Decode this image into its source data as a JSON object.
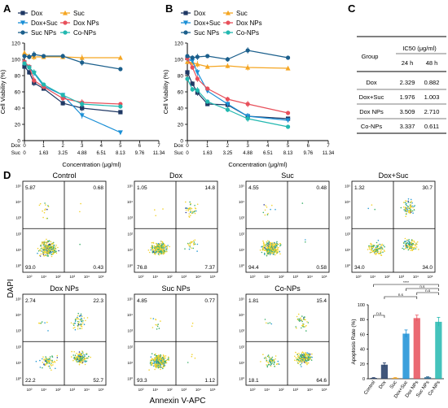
{
  "panels": {
    "A": "A",
    "B": "B",
    "C": "C",
    "D": "D"
  },
  "colors": {
    "dox": "#1f3864",
    "suc": "#f5a623",
    "doxsuc": "#1a8fd6",
    "doxnp": "#e8505b",
    "sucnp": "#1b5f8c",
    "conp": "#23b8b0"
  },
  "chart_data": [
    {
      "type": "line",
      "panel": "A",
      "ylabel": "Cell Viability (%)",
      "xlabel": "Concentration (μg/ml)",
      "ylim": [
        0,
        120
      ],
      "yticks": [
        0,
        20,
        40,
        60,
        80,
        100,
        120
      ],
      "x_label_rows": [
        {
          "name": "Dox",
          "ticks": [
            "0",
            "1",
            "2",
            "3",
            "4",
            "5",
            "6",
            "7"
          ]
        },
        {
          "name": "Suc",
          "ticks": [
            "0",
            "1.63",
            "3.25",
            "4.88",
            "6.51",
            "8.13",
            "9.76",
            "11.34"
          ]
        }
      ],
      "xlim": [
        0,
        7
      ],
      "series": [
        {
          "name": "Dox",
          "key": "dox",
          "marker": "square",
          "x": [
            0,
            0.25,
            0.5,
            1,
            2,
            3,
            5
          ],
          "y": [
            91,
            84,
            71,
            64,
            46,
            40,
            35
          ]
        },
        {
          "name": "Suc",
          "key": "suc",
          "marker": "triangle-up",
          "x": [
            0,
            0.25,
            0.5,
            1,
            2,
            3,
            5
          ],
          "y": [
            108,
            104,
            103,
            103,
            103,
            102,
            102
          ]
        },
        {
          "name": "Dox+Suc",
          "key": "doxsuc",
          "marker": "triangle-down",
          "x": [
            0,
            0.25,
            0.5,
            1,
            2,
            3,
            5
          ],
          "y": [
            96,
            90,
            83,
            67,
            56,
            31,
            10
          ]
        },
        {
          "name": "Dox NPs",
          "key": "doxnp",
          "marker": "circle",
          "x": [
            0,
            0.25,
            0.5,
            1,
            2,
            3,
            5
          ],
          "y": [
            97,
            91,
            74,
            66,
            52,
            47,
            45
          ]
        },
        {
          "name": "Suc NPs",
          "key": "sucnp",
          "marker": "circle",
          "x": [
            0,
            0.25,
            0.5,
            1,
            2,
            3,
            5
          ],
          "y": [
            104,
            103,
            106,
            104,
            104,
            96,
            88
          ]
        },
        {
          "name": "Co-NPs",
          "key": "conp",
          "marker": "circle",
          "x": [
            0,
            0.25,
            0.5,
            1,
            2,
            3,
            5
          ],
          "y": [
            95,
            90,
            84,
            69,
            56,
            45,
            42
          ]
        }
      ]
    },
    {
      "type": "line",
      "panel": "B",
      "ylabel": "Cell Viability (%)",
      "xlabel": "Concentration (μg/ml)",
      "ylim": [
        0,
        120
      ],
      "yticks": [
        0,
        20,
        40,
        60,
        80,
        100,
        120
      ],
      "x_label_rows": [
        {
          "name": "Dox",
          "ticks": [
            "0",
            "1",
            "2",
            "3",
            "4",
            "5",
            "6",
            "7"
          ]
        },
        {
          "name": "Suc",
          "ticks": [
            "0",
            "1.63",
            "3.25",
            "4.88",
            "6.51",
            "8.13",
            "9.76",
            "11.34"
          ]
        }
      ],
      "xlim": [
        0,
        7
      ],
      "series": [
        {
          "name": "Dox",
          "key": "dox",
          "marker": "square",
          "x": [
            0,
            0.25,
            0.5,
            1,
            2,
            3,
            5
          ],
          "y": [
            84,
            70,
            59,
            45,
            44,
            30,
            27
          ]
        },
        {
          "name": "Suc",
          "key": "suc",
          "marker": "triangle-up",
          "x": [
            0,
            0.25,
            0.5,
            1,
            2,
            3,
            5
          ],
          "y": [
            97,
            96,
            94,
            91,
            92,
            90,
            89
          ]
        },
        {
          "name": "Dox+Suc",
          "key": "doxsuc",
          "marker": "triangle-down",
          "x": [
            0,
            0.25,
            0.5,
            1,
            2,
            3,
            5
          ],
          "y": [
            100,
            98,
            84,
            61,
            45,
            30,
            25
          ]
        },
        {
          "name": "Dox NPs",
          "key": "doxnp",
          "marker": "circle",
          "x": [
            0,
            0.25,
            0.5,
            1,
            2,
            3,
            5
          ],
          "y": [
            101,
            90,
            76,
            64,
            51,
            45,
            34
          ]
        },
        {
          "name": "Suc NPs",
          "key": "sucnp",
          "marker": "circle",
          "x": [
            0,
            0.25,
            0.5,
            1,
            2,
            3,
            5
          ],
          "y": [
            104,
            102,
            103,
            104,
            100,
            111,
            102
          ]
        },
        {
          "name": "Co-NPs",
          "key": "conp",
          "marker": "circle",
          "x": [
            0,
            0.25,
            0.5,
            1,
            2,
            3,
            5
          ],
          "y": [
            76,
            63,
            62,
            48,
            38,
            27,
            17
          ]
        }
      ]
    },
    {
      "type": "table",
      "panel": "C",
      "header_top": [
        "Group",
        "IC50 (μg/ml)"
      ],
      "header_sub": [
        "24 h",
        "48 h"
      ],
      "rows": [
        [
          "Dox",
          "2.329",
          "0.882"
        ],
        [
          "Dox+Suc",
          "1.976",
          "1.003"
        ],
        [
          "Dox NPs",
          "3.509",
          "2.710"
        ],
        [
          "Co-NPs",
          "3.337",
          "0.611"
        ]
      ]
    },
    {
      "type": "bar",
      "panel": "D-inset",
      "ylabel": "Apoptosis Rate (%)",
      "ylim": [
        0,
        100
      ],
      "yticks": [
        0,
        20,
        40,
        60,
        80,
        100
      ],
      "categories": [
        "Control",
        "Dox",
        "Suc",
        "Dox+Suc",
        "Dox NPs",
        "Suc NPs",
        "Co-NPs"
      ],
      "values": [
        1.1,
        19,
        1.2,
        61,
        82,
        2,
        77
      ],
      "errors": [
        0.4,
        2.5,
        0.4,
        5,
        4,
        0.6,
        6
      ],
      "bar_colors": [
        "#1f3864",
        "#1f3864",
        "#f5a623",
        "#1a8fd6",
        "#e8505b",
        "#1b5f8c",
        "#23b8b0"
      ],
      "significance": [
        {
          "from": 0,
          "to": 1,
          "label": "n.s"
        },
        {
          "from": 0,
          "to": 6,
          "label": "****"
        },
        {
          "from": 3,
          "to": 6,
          "label": "n.s"
        },
        {
          "from": 4,
          "to": 6,
          "label": "n.s"
        },
        {
          "from": 1,
          "to": 4,
          "label": "n.s"
        }
      ]
    },
    {
      "type": "scatter",
      "panel": "D-flow",
      "xlabel": "Annexin V-APC",
      "ylabel": "DAPI",
      "tick_labels": [
        "10⁰",
        "10¹",
        "10²",
        "10³",
        "10⁴",
        "10⁵"
      ],
      "plots": [
        {
          "title": "Control",
          "q": [
            "5.87",
            "0.68",
            "93.0",
            "0.43"
          ]
        },
        {
          "title": "Dox",
          "q": [
            "1.05",
            "14.8",
            "76.8",
            "7.37"
          ]
        },
        {
          "title": "Suc",
          "q": [
            "4.55",
            "0.48",
            "94.4",
            "0.58"
          ]
        },
        {
          "title": "Dox+Suc",
          "q": [
            "1.32",
            "30.7",
            "34.0",
            "34.0"
          ]
        },
        {
          "title": "Dox NPs",
          "q": [
            "2.74",
            "22.3",
            "22.2",
            "52.7"
          ]
        },
        {
          "title": "Suc NPs",
          "q": [
            "4.85",
            "0.77",
            "93.3",
            "1.12"
          ]
        },
        {
          "title": "Co-NPs",
          "q": [
            "1.81",
            "15.4",
            "18.1",
            "64.6"
          ]
        }
      ]
    }
  ]
}
